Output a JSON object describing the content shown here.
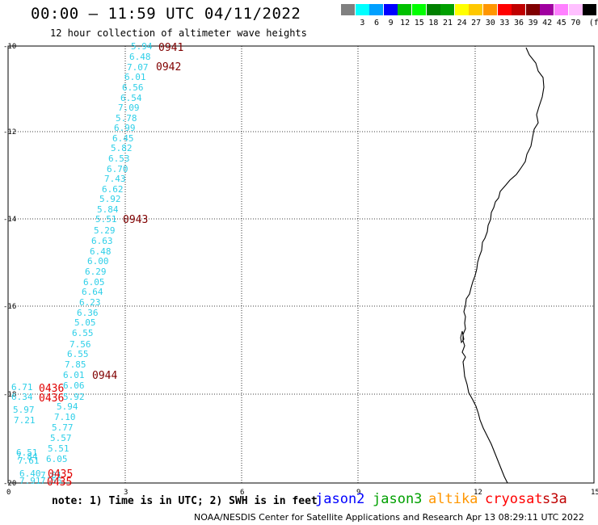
{
  "header": {
    "title": "00:00 – 11:59 UTC 04/11/2022",
    "subtitle": "12 hour collection of altimeter wave heights"
  },
  "colorbar": {
    "unit_label": "(ft)",
    "swatches": [
      {
        "color": "#808080",
        "label": ""
      },
      {
        "color": "#00ffff",
        "label": "3"
      },
      {
        "color": "#00a0ff",
        "label": "6"
      },
      {
        "color": "#0000ff",
        "label": "9"
      },
      {
        "color": "#00c000",
        "label": "12"
      },
      {
        "color": "#00ff00",
        "label": "15"
      },
      {
        "color": "#008000",
        "label": "18"
      },
      {
        "color": "#00a000",
        "label": "21"
      },
      {
        "color": "#ffff00",
        "label": "24"
      },
      {
        "color": "#ffc800",
        "label": "27"
      },
      {
        "color": "#ff9600",
        "label": "30"
      },
      {
        "color": "#ff0000",
        "label": "33"
      },
      {
        "color": "#c00000",
        "label": "36"
      },
      {
        "color": "#800000",
        "label": "39"
      },
      {
        "color": "#a000a0",
        "label": "42"
      },
      {
        "color": "#ff80ff",
        "label": "45"
      },
      {
        "color": "#ffc0ff",
        "label": "70"
      },
      {
        "color": "#000000",
        "label": ""
      }
    ]
  },
  "map": {
    "frame_color": "#000000",
    "grid_color": "#000000",
    "x_ticks": [
      "0",
      "3",
      "6",
      "9",
      "12",
      "15"
    ],
    "y_ticks": [
      "-10",
      "-12",
      "-14",
      "-16",
      "-18",
      "-20"
    ],
    "wave_color": "#2ecfe8",
    "time_color_dark": "#800000",
    "time_color_red": "#e00000",
    "wave_heights": [
      "5.94",
      "6.48",
      "7.07",
      "6.01",
      "6.56",
      "6.54",
      "7.09",
      "5.78",
      "6.99",
      "6.45",
      "5.82",
      "6.53",
      "6.70",
      "7.43",
      "6.62",
      "5.92",
      "5.84",
      "5.51",
      "5.29",
      "6.63",
      "6.48",
      "6.00",
      "6.29",
      "6.05",
      "6.64",
      "6.23",
      "6.36",
      "5.05",
      "6.55",
      "7.56",
      "6.55",
      "7.85",
      "6.01",
      "6.06",
      "5.92",
      "5.94",
      "7.10",
      "5.77",
      "5.57",
      "5.51",
      "6.05",
      "6.71",
      "6.34",
      "5.97",
      "7.21",
      "6.51",
      "7.84",
      "7.61",
      "6.40",
      "7.91",
      "7.01",
      "7.56"
    ],
    "time_labels": [
      "0941",
      "0942",
      "0943",
      "0944",
      "0436",
      "0436",
      "0435",
      "0435"
    ]
  },
  "footer": {
    "note": "note: 1) Time is in UTC; 2) SWH is in feet",
    "satellites": [
      {
        "name": "jason2",
        "color": "#0000ff"
      },
      {
        "name": "jason3",
        "color": "#00a000"
      },
      {
        "name": "altika",
        "color": "#ff9600"
      },
      {
        "name": "cryosat",
        "color": "#ff0000"
      },
      {
        "name": "s3a",
        "color": "#c00000"
      }
    ],
    "credit": "NOAA/NESDIS Center for Satellite Applications and Research    Apr 13 08:29:11 UTC 2022"
  }
}
